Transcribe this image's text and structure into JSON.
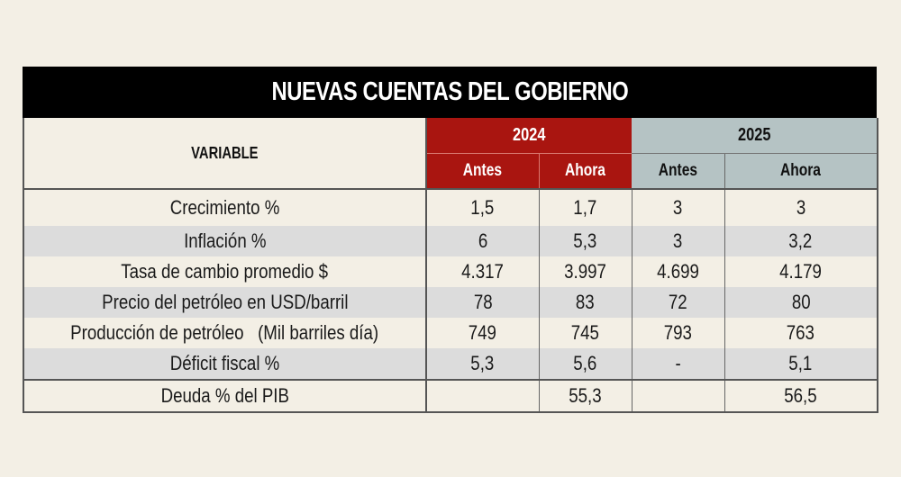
{
  "title": "NUEVAS CUENTAS DEL GOBIERNO",
  "header": {
    "variable_label": "VARIABLE",
    "years": [
      {
        "year": "2024",
        "color": "#a91510",
        "sub": [
          "Antes",
          "Ahora"
        ]
      },
      {
        "year": "2025",
        "color": "#b5c3c4",
        "sub": [
          "Antes",
          "Ahora"
        ]
      }
    ]
  },
  "rows": [
    {
      "variable": "Crecimiento %",
      "values": [
        "1,5",
        "1,7",
        "3",
        "3"
      ]
    },
    {
      "variable": "Inflación %",
      "values": [
        "6",
        "5,3",
        "3",
        "3,2"
      ]
    },
    {
      "variable": "Tasa de cambio promedio $",
      "values": [
        "4.317",
        "3.997",
        "4.699",
        "4.179"
      ]
    },
    {
      "variable": "Precio del petróleo en USD/barril",
      "values": [
        "78",
        "83",
        "72",
        "80"
      ]
    },
    {
      "variable": "Producción de petróleo   (Mil barriles día)",
      "values": [
        "749",
        "745",
        "793",
        "763"
      ]
    },
    {
      "variable": "Déficit fiscal %",
      "values": [
        "5,3",
        "5,6",
        "-",
        "5,1"
      ]
    },
    {
      "variable": "Deuda % del PIB",
      "values": [
        "",
        "55,3",
        "",
        "56,5"
      ]
    }
  ],
  "colors": {
    "background": "#f3efe5",
    "title_bar": "#000000",
    "year_2024": "#a91510",
    "year_2025": "#b5c3c4",
    "stripe_gray": "#dcdcdc"
  }
}
